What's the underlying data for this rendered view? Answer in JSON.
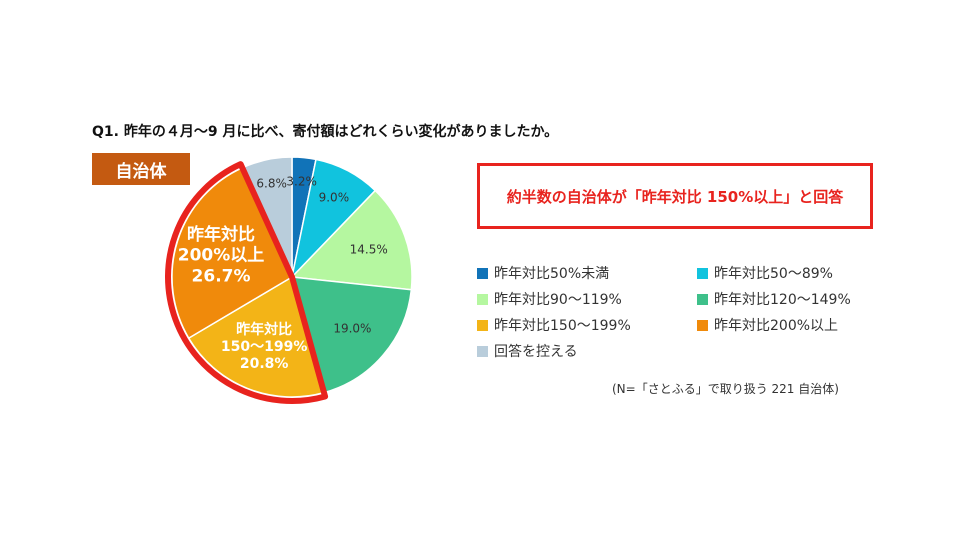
{
  "question": "Q1. 昨年の４月～9 月に比べ、寄付額はどれくらい変化がありましたか。",
  "tag_label": "自治体",
  "callout": "約半数の自治体が「昨年対比 150%以上」と回答",
  "note": "(N=「さとふる」で取り扱う 221 自治体)",
  "chart_data": {
    "type": "pie",
    "unit": "%",
    "slices": [
      {
        "label": "昨年対比50%未満",
        "value": 3.2,
        "value_label": "3.2%",
        "color": "#1173B8"
      },
      {
        "label": "昨年対比50～89%",
        "value": 9.0,
        "value_label": "9.0%",
        "color": "#11C3DE"
      },
      {
        "label": "昨年対比90～119%",
        "value": 14.5,
        "value_label": "14.5%",
        "color": "#B5F7A0"
      },
      {
        "label": "昨年対比120～149%",
        "value": 19.0,
        "value_label": "19.0%",
        "color": "#3EC08A"
      },
      {
        "label": "昨年対比150～199%",
        "value": 20.8,
        "value_label": "20.8%",
        "color": "#F3B417",
        "inner_lines": [
          "昨年対比",
          "150～199%"
        ]
      },
      {
        "label": "昨年対比200%以上",
        "value": 26.7,
        "value_label": "26.7%",
        "color": "#F08A0B",
        "inner_lines": [
          "昨年対比",
          "200%以上"
        ]
      },
      {
        "label": "回答を控える",
        "value": 6.8,
        "value_label": "6.8%",
        "color": "#B9CDDB"
      }
    ],
    "highlight": "slices 150%以上",
    "highlight_color": "#E8231E",
    "start_angle_deg": 0,
    "direction": "clockwise"
  }
}
